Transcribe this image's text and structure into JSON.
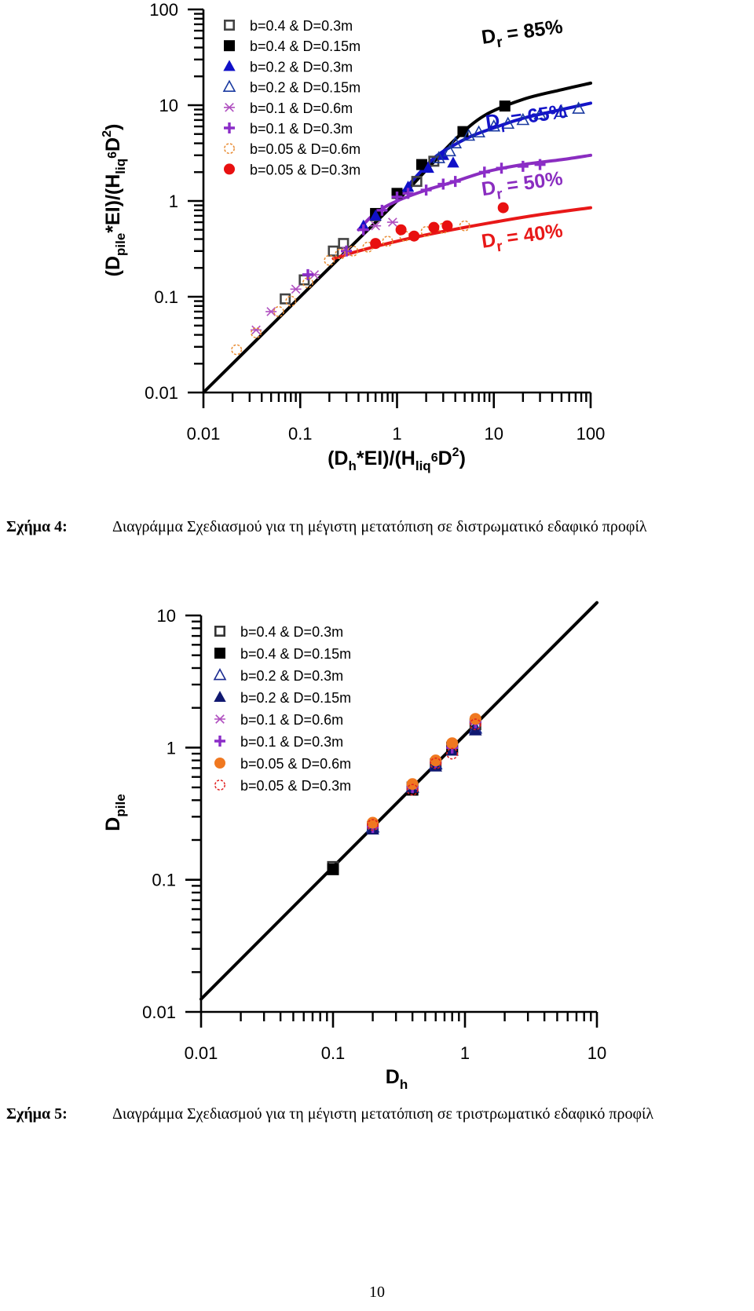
{
  "figure4": {
    "caption_label": "Σχήμα 4:",
    "caption_text": "Διαγράμμα Σχεδιασμού για τη μέγιστη μετατόπιση σε διστρωματικό εδαφικό προφίλ"
  },
  "figure5": {
    "caption_label": "Σχήμα 5:",
    "caption_text": "Διαγράμμα Σχεδιασμού για τη μέγιστη μετατόπιση σε τριστρωματικό εδαφικό προφίλ"
  },
  "page_number": "10",
  "chart_data": [
    {
      "type": "scatter",
      "title": "",
      "xlabel": "(Dh*EI)/(Hliq6D2)",
      "ylabel": "(Dpile*EI)/(Hliq6D2)",
      "xscale": "log",
      "yscale": "log",
      "xlim": [
        0.01,
        100
      ],
      "ylim": [
        0.01,
        100
      ],
      "x_ticks": [
        "0.01",
        "0.1",
        "1",
        "10",
        "100"
      ],
      "y_ticks": [
        "0.01",
        "0.1",
        "1",
        "10",
        "100"
      ],
      "legend_position": "top-left",
      "series": [
        {
          "name": "b=0.4 & D=0.3m",
          "marker": "square-open",
          "color": "#444444",
          "points": [
            [
              0.07,
              0.095
            ],
            [
              0.11,
              0.15
            ],
            [
              0.22,
              0.3
            ],
            [
              0.28,
              0.36
            ],
            [
              0.6,
              0.7
            ],
            [
              1.6,
              1.6
            ],
            [
              2.4,
              2.6
            ]
          ]
        },
        {
          "name": "b=0.4 & D=0.15m",
          "marker": "square",
          "color": "#000000",
          "points": [
            [
              0.6,
              0.74
            ],
            [
              1.0,
              1.2
            ],
            [
              1.8,
              2.4
            ],
            [
              4.8,
              5.3
            ],
            [
              13,
              9.8
            ]
          ]
        },
        {
          "name": "b=0.2 & D=0.3m",
          "marker": "triangle",
          "color": "#1010c8",
          "points": [
            [
              0.45,
              0.55
            ],
            [
              0.6,
              0.7
            ],
            [
              1.3,
              1.4
            ],
            [
              2.1,
              2.2
            ],
            [
              3.0,
              3.0
            ],
            [
              3.8,
              2.5
            ]
          ]
        },
        {
          "name": "b=0.2 & D=0.15m",
          "marker": "triangle-open",
          "color": "#1a3aa0",
          "points": [
            [
              2.7,
              2.8
            ],
            [
              3.5,
              3.3
            ],
            [
              4.0,
              4.0
            ],
            [
              5.5,
              4.8
            ],
            [
              7,
              5.2
            ],
            [
              10,
              6.0
            ],
            [
              14,
              6.4
            ],
            [
              20,
              7.0
            ],
            [
              30,
              8.0
            ],
            [
              50,
              8.5
            ],
            [
              75,
              9.2
            ]
          ]
        },
        {
          "name": "b=0.1 & D=0.6m",
          "marker": "asterisk",
          "color": "#b050c0",
          "points": [
            [
              0.035,
              0.045
            ],
            [
              0.05,
              0.07
            ],
            [
              0.09,
              0.12
            ],
            [
              0.14,
              0.17
            ],
            [
              0.3,
              0.3
            ],
            [
              0.6,
              0.55
            ],
            [
              0.9,
              0.6
            ]
          ]
        },
        {
          "name": "b=0.1 & D=0.3m",
          "marker": "plus",
          "color": "#8b2dc8",
          "points": [
            [
              0.12,
              0.17
            ],
            [
              0.3,
              0.3
            ],
            [
              0.45,
              0.5
            ],
            [
              0.7,
              0.8
            ],
            [
              1.0,
              1.1
            ],
            [
              1.3,
              1.2
            ],
            [
              2,
              1.3
            ],
            [
              3,
              1.5
            ],
            [
              4,
              1.6
            ],
            [
              8,
              2.0
            ],
            [
              12,
              2.2
            ],
            [
              20,
              2.3
            ],
            [
              30,
              2.4
            ]
          ]
        },
        {
          "name": "b=0.05 & D=0.6m",
          "marker": "circle-open",
          "color": "#e88a30",
          "points": [
            [
              0.022,
              0.028
            ],
            [
              0.035,
              0.042
            ],
            [
              0.06,
              0.07
            ],
            [
              0.08,
              0.09
            ],
            [
              0.12,
              0.14
            ],
            [
              0.2,
              0.24
            ],
            [
              0.26,
              0.28
            ],
            [
              0.35,
              0.3
            ],
            [
              0.5,
              0.33
            ],
            [
              0.8,
              0.38
            ],
            [
              1.2,
              0.43
            ],
            [
              2,
              0.48
            ],
            [
              3,
              0.52
            ],
            [
              5,
              0.55
            ]
          ]
        },
        {
          "name": "b=0.05 & D=0.3m",
          "marker": "circle",
          "color": "#e81010",
          "points": [
            [
              0.6,
              0.36
            ],
            [
              1.1,
              0.5
            ],
            [
              1.5,
              0.43
            ],
            [
              2.4,
              0.53
            ],
            [
              3.3,
              0.55
            ],
            [
              12.5,
              0.85
            ]
          ]
        }
      ],
      "curves": [
        {
          "name": "Dr = 85%",
          "color": "#000000",
          "points": [
            [
              0.01,
              0.01
            ],
            [
              0.1,
              0.1
            ],
            [
              0.3,
              0.3
            ],
            [
              1,
              1
            ],
            [
              2,
              2.1
            ],
            [
              4,
              4.4
            ],
            [
              8,
              7.8
            ],
            [
              20,
              11.5
            ],
            [
              50,
              14.5
            ],
            [
              100,
              17
            ]
          ]
        },
        {
          "name": "Dr = 65%",
          "color": "#1414c8",
          "points": [
            [
              1,
              1.05
            ],
            [
              1.5,
              1.7
            ],
            [
              2.5,
              2.9
            ],
            [
              4,
              3.9
            ],
            [
              6,
              4.8
            ],
            [
              10,
              5.8
            ],
            [
              20,
              7.3
            ],
            [
              50,
              9.0
            ],
            [
              100,
              10.5
            ]
          ]
        },
        {
          "name": "Dr = 50%",
          "color": "#8a2dc0",
          "points": [
            [
              0.4,
              0.5
            ],
            [
              0.6,
              0.75
            ],
            [
              1,
              1.0
            ],
            [
              2,
              1.3
            ],
            [
              4,
              1.6
            ],
            [
              8,
              2.0
            ],
            [
              20,
              2.4
            ],
            [
              50,
              2.7
            ],
            [
              100,
              3.0
            ]
          ]
        },
        {
          "name": "Dr = 40%",
          "color": "#e81818",
          "points": [
            [
              0.22,
              0.25
            ],
            [
              0.4,
              0.3
            ],
            [
              1,
              0.38
            ],
            [
              3,
              0.48
            ],
            [
              10,
              0.6
            ],
            [
              30,
              0.72
            ],
            [
              100,
              0.85
            ]
          ]
        }
      ],
      "curve_labels": [
        "Dr = 85%",
        "Dr = 65%",
        "Dr = 50%",
        "Dr = 40%"
      ]
    },
    {
      "type": "scatter",
      "title": "",
      "xlabel": "Dh",
      "ylabel": "Dpile",
      "xscale": "log",
      "yscale": "log",
      "xlim": [
        0.01,
        10
      ],
      "ylim": [
        0.01,
        10
      ],
      "x_ticks": [
        "0.01",
        "0.1",
        "1",
        "10"
      ],
      "y_ticks": [
        "0.01",
        "0.1",
        "1",
        "10"
      ],
      "legend_position": "top-left",
      "series": [
        {
          "name": "b=0.4 & D=0.3m",
          "marker": "square-open",
          "color": "#333333",
          "points": [
            [
              0.1,
              0.125
            ],
            [
              0.2,
              0.25
            ],
            [
              0.4,
              0.5
            ],
            [
              0.6,
              0.75
            ],
            [
              0.8,
              1.0
            ],
            [
              1.2,
              1.5
            ]
          ]
        },
        {
          "name": "b=0.4 & D=0.15m",
          "marker": "square",
          "color": "#000000",
          "points": [
            [
              0.1,
              0.12
            ],
            [
              0.4,
              0.48
            ],
            [
              0.8,
              1.0
            ]
          ]
        },
        {
          "name": "b=0.2 & D=0.3m",
          "marker": "triangle-open",
          "color": "#1a2a90",
          "points": [
            [
              0.2,
              0.25
            ],
            [
              0.4,
              0.5
            ],
            [
              0.6,
              0.75
            ],
            [
              1.2,
              1.4
            ]
          ]
        },
        {
          "name": "b=0.2 & D=0.15m",
          "marker": "triangle",
          "color": "#101870",
          "points": [
            [
              0.2,
              0.24
            ],
            [
              0.4,
              0.5
            ],
            [
              0.6,
              0.72
            ],
            [
              0.8,
              0.95
            ],
            [
              1.2,
              1.35
            ]
          ]
        },
        {
          "name": "b=0.1 & D=0.6m",
          "marker": "asterisk",
          "color": "#b050c0",
          "points": [
            [
              0.2,
              0.26
            ],
            [
              0.4,
              0.52
            ],
            [
              0.8,
              1.05
            ],
            [
              1.2,
              1.6
            ]
          ]
        },
        {
          "name": "b=0.1 & D=0.3m",
          "marker": "plus",
          "color": "#8b2dc8",
          "points": [
            [
              0.2,
              0.25
            ],
            [
              0.4,
              0.5
            ],
            [
              0.6,
              0.78
            ],
            [
              0.8,
              1.0
            ],
            [
              1.2,
              1.55
            ]
          ]
        },
        {
          "name": "b=0.05 & D=0.6m",
          "marker": "circle",
          "color": "#f07820",
          "points": [
            [
              0.2,
              0.27
            ],
            [
              0.4,
              0.53
            ],
            [
              0.6,
              0.8
            ],
            [
              0.8,
              1.08
            ],
            [
              1.2,
              1.65
            ]
          ]
        },
        {
          "name": "b=0.05 & D=0.3m",
          "marker": "circle-open",
          "color": "#e02020",
          "points": [
            [
              0.2,
              0.26
            ],
            [
              0.4,
              0.48
            ],
            [
              0.6,
              0.76
            ],
            [
              0.8,
              0.9
            ],
            [
              1.2,
              1.5
            ]
          ]
        }
      ],
      "curves": [
        {
          "name": "",
          "color": "#000000",
          "points": [
            [
              0.01,
              0.0125
            ],
            [
              10,
              12.5
            ]
          ]
        }
      ]
    }
  ]
}
